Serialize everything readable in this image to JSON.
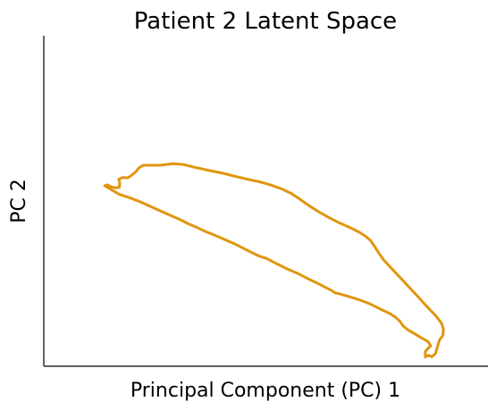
{
  "chart_data": {
    "type": "line",
    "title": "Patient 2 Latent Space",
    "xlabel": "Principal Component (PC) 1",
    "ylabel": "PC 2",
    "xlim": [
      0,
      100
    ],
    "ylim": [
      0,
      100
    ],
    "grid": false,
    "legend": "none",
    "xticks": [],
    "yticks": [],
    "series": [
      {
        "color": "#e0960f",
        "points": [
          [
            13.7,
            54.6
          ],
          [
            14.3,
            54.9
          ],
          [
            15.1,
            54.3
          ],
          [
            16.1,
            54.0
          ],
          [
            17.0,
            54.1
          ],
          [
            17.1,
            55.4
          ],
          [
            16.9,
            56.6
          ],
          [
            17.7,
            57.1
          ],
          [
            18.9,
            57.0
          ],
          [
            19.7,
            57.7
          ],
          [
            20.7,
            58.8
          ],
          [
            21.4,
            60.0
          ],
          [
            22.4,
            60.8
          ],
          [
            24.2,
            60.8
          ],
          [
            26.2,
            60.8
          ],
          [
            28.0,
            61.1
          ],
          [
            29.3,
            61.3
          ],
          [
            31.5,
            61.0
          ],
          [
            34.0,
            60.2
          ],
          [
            37.0,
            59.3
          ],
          [
            40.3,
            58.4
          ],
          [
            43.0,
            57.5
          ],
          [
            45.8,
            56.6
          ],
          [
            48.6,
            55.8
          ],
          [
            51.0,
            54.9
          ],
          [
            53.5,
            53.7
          ],
          [
            55.7,
            52.3
          ],
          [
            57.8,
            50.4
          ],
          [
            59.7,
            48.6
          ],
          [
            61.7,
            46.9
          ],
          [
            64.0,
            45.1
          ],
          [
            66.5,
            43.4
          ],
          [
            68.7,
            42.1
          ],
          [
            70.8,
            40.7
          ],
          [
            72.5,
            39.3
          ],
          [
            73.5,
            38.1
          ],
          [
            74.5,
            36.2
          ],
          [
            75.5,
            34.1
          ],
          [
            76.5,
            32.2
          ],
          [
            78.0,
            30.0
          ],
          [
            79.5,
            27.9
          ],
          [
            81.0,
            25.7
          ],
          [
            82.6,
            23.4
          ],
          [
            84.2,
            21.1
          ],
          [
            85.9,
            18.6
          ],
          [
            87.3,
            16.6
          ],
          [
            88.5,
            14.9
          ],
          [
            89.6,
            12.9
          ],
          [
            90.0,
            11.0
          ],
          [
            89.8,
            9.2
          ],
          [
            89.1,
            8.0
          ],
          [
            88.2,
            3.9
          ],
          [
            87.4,
            2.9
          ],
          [
            86.6,
            3.3
          ],
          [
            85.9,
            2.8
          ],
          [
            85.9,
            4.4
          ],
          [
            86.5,
            5.4
          ],
          [
            87.1,
            6.2
          ],
          [
            86.5,
            7.5
          ],
          [
            85.0,
            8.6
          ],
          [
            83.5,
            9.8
          ],
          [
            82.0,
            11.0
          ],
          [
            80.9,
            12.2
          ],
          [
            80.1,
            13.7
          ],
          [
            79.2,
            14.8
          ],
          [
            78.0,
            15.9
          ],
          [
            76.5,
            16.8
          ],
          [
            74.9,
            17.9
          ],
          [
            73.2,
            19.0
          ],
          [
            71.0,
            20.1
          ],
          [
            68.4,
            21.2
          ],
          [
            66.3,
            22.0
          ],
          [
            65.6,
            22.2
          ],
          [
            64.8,
            22.9
          ],
          [
            63.8,
            23.6
          ],
          [
            61.6,
            25.1
          ],
          [
            59.3,
            26.6
          ],
          [
            57.0,
            28.2
          ],
          [
            54.7,
            29.5
          ],
          [
            52.3,
            31.1
          ],
          [
            50.2,
            32.6
          ],
          [
            48.3,
            33.4
          ],
          [
            45.8,
            35.1
          ],
          [
            43.3,
            36.8
          ],
          [
            41.0,
            38.2
          ],
          [
            38.4,
            39.7
          ],
          [
            36.0,
            41.0
          ],
          [
            34.3,
            42.1
          ],
          [
            32.5,
            43.1
          ],
          [
            30.8,
            44.3
          ],
          [
            27.2,
            46.4
          ],
          [
            25.4,
            47.5
          ],
          [
            23.8,
            48.5
          ],
          [
            22.0,
            49.6
          ],
          [
            19.5,
            50.9
          ],
          [
            17.0,
            52.0
          ],
          [
            13.7,
            54.6
          ]
        ]
      }
    ]
  }
}
